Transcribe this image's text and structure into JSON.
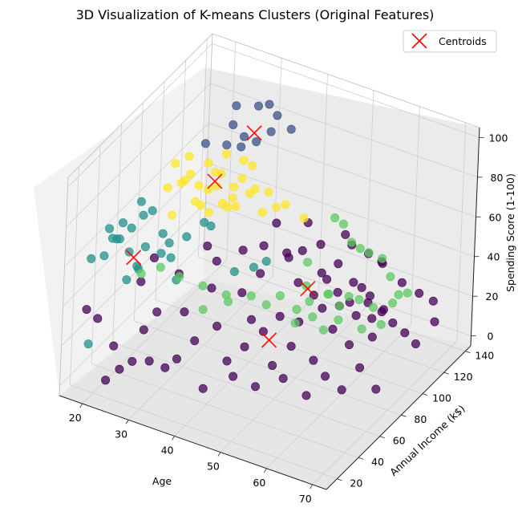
{
  "chart_data": {
    "type": "scatter",
    "title": "3D Visualization of K-means Clusters (Original Features)",
    "xlabel": "Age",
    "ylabel": "Annual Income (k$)",
    "zlabel": "Spending Score (1-100)",
    "xlim": [
      15,
      73
    ],
    "ylim": [
      10,
      145
    ],
    "zlim": [
      -5,
      105
    ],
    "xticks": [
      "20",
      "30",
      "40",
      "50",
      "60",
      "70"
    ],
    "yticks": [
      "20",
      "40",
      "60",
      "80",
      "100",
      "120",
      "140"
    ],
    "zticks": [
      "0",
      "20",
      "40",
      "60",
      "80",
      "100"
    ],
    "grid": true,
    "legend": {
      "position": "top-right",
      "entries": [
        "Centroids"
      ]
    },
    "colors": {
      "cluster0": "#440154",
      "cluster1": "#3b528b",
      "cluster2": "#21918c",
      "cluster3": "#5ec962",
      "cluster4": "#fde725",
      "centroid": "#ff0000"
    },
    "series": [
      {
        "cluster": 0,
        "points": [
          [
            19,
            15,
            39
          ],
          [
            21,
            17,
            35
          ],
          [
            23,
            18,
            5
          ],
          [
            24,
            20,
            22
          ],
          [
            25,
            22,
            10
          ],
          [
            27,
            25,
            14
          ],
          [
            29,
            26,
            31
          ],
          [
            30,
            28,
            15
          ],
          [
            31,
            29,
            40
          ],
          [
            33,
            30,
            13
          ],
          [
            35,
            32,
            18
          ],
          [
            36,
            33,
            42
          ],
          [
            38,
            35,
            28
          ],
          [
            40,
            36,
            5
          ],
          [
            42,
            38,
            37
          ],
          [
            44,
            40,
            20
          ],
          [
            45,
            42,
            12
          ],
          [
            47,
            43,
            28
          ],
          [
            48,
            44,
            42
          ],
          [
            49,
            46,
            8
          ],
          [
            50,
            47,
            36
          ],
          [
            52,
            48,
            20
          ],
          [
            53,
            49,
            45
          ],
          [
            54,
            50,
            14
          ],
          [
            55,
            52,
            30
          ],
          [
            56,
            54,
            42
          ],
          [
            58,
            55,
            6
          ],
          [
            59,
            56,
            24
          ],
          [
            60,
            58,
            50
          ],
          [
            61,
            59,
            16
          ],
          [
            62,
            60,
            40
          ],
          [
            63,
            61,
            52
          ],
          [
            64,
            62,
            10
          ],
          [
            65,
            63,
            33
          ],
          [
            66,
            64,
            48
          ],
          [
            67,
            65,
            22
          ],
          [
            68,
            66,
            55
          ],
          [
            69,
            67,
            38
          ],
          [
            70,
            68,
            12
          ],
          [
            46,
            60,
            55
          ],
          [
            44,
            52,
            48
          ],
          [
            41,
            65,
            60
          ],
          [
            37,
            58,
            55
          ],
          [
            34,
            62,
            58
          ],
          [
            52,
            70,
            50
          ],
          [
            55,
            72,
            45
          ],
          [
            57,
            75,
            53
          ],
          [
            59,
            77,
            47
          ],
          [
            61,
            80,
            42
          ],
          [
            63,
            82,
            50
          ],
          [
            65,
            84,
            35
          ],
          [
            67,
            86,
            40
          ],
          [
            53,
            88,
            46
          ],
          [
            56,
            90,
            52
          ],
          [
            59,
            92,
            44
          ],
          [
            62,
            95,
            38
          ],
          [
            64,
            98,
            30
          ],
          [
            66,
            100,
            25
          ],
          [
            68,
            103,
            20
          ],
          [
            70,
            105,
            15
          ],
          [
            39,
            45,
            50
          ],
          [
            33,
            40,
            55
          ],
          [
            28,
            38,
            60
          ],
          [
            26,
            35,
            48
          ],
          [
            48,
            78,
            55
          ],
          [
            50,
            82,
            58
          ],
          [
            46,
            85,
            52
          ],
          [
            43,
            76,
            58
          ],
          [
            51,
            95,
            55
          ],
          [
            58,
            110,
            48
          ],
          [
            60,
            115,
            42
          ],
          [
            54,
            105,
            57
          ],
          [
            47,
            100,
            60
          ],
          [
            42,
            92,
            60
          ],
          [
            67,
            120,
            30
          ],
          [
            69,
            125,
            25
          ],
          [
            65,
            112,
            38
          ],
          [
            71,
            118,
            20
          ],
          [
            62,
            105,
            50
          ],
          [
            57,
            98,
            58
          ]
        ]
      },
      {
        "cluster": 1,
        "points": [
          [
            27,
            88,
            90
          ],
          [
            30,
            95,
            88
          ],
          [
            32,
            100,
            86
          ],
          [
            29,
            105,
            92
          ],
          [
            33,
            110,
            84
          ],
          [
            35,
            115,
            88
          ],
          [
            31,
            120,
            95
          ],
          [
            34,
            125,
            90
          ],
          [
            36,
            130,
            82
          ],
          [
            30,
            135,
            87
          ],
          [
            28,
            112,
            97
          ],
          [
            33,
            98,
            93
          ]
        ]
      },
      {
        "cluster": 2,
        "points": [
          [
            20,
            40,
            62
          ],
          [
            21,
            38,
            72
          ],
          [
            22,
            42,
            68
          ],
          [
            23,
            36,
            60
          ],
          [
            24,
            44,
            75
          ],
          [
            25,
            35,
            55
          ],
          [
            26,
            38,
            64
          ],
          [
            19,
            30,
            58
          ],
          [
            20,
            33,
            66
          ],
          [
            22,
            28,
            70
          ],
          [
            23,
            46,
            80
          ],
          [
            25,
            48,
            76
          ],
          [
            27,
            50,
            65
          ],
          [
            28,
            52,
            60
          ],
          [
            24,
            30,
            50
          ],
          [
            26,
            32,
            56
          ],
          [
            29,
            40,
            62
          ],
          [
            30,
            45,
            58
          ],
          [
            21,
            25,
            76
          ],
          [
            18,
            22,
            60
          ],
          [
            32,
            42,
            50
          ],
          [
            31,
            55,
            64
          ],
          [
            34,
            58,
            72
          ],
          [
            35,
            60,
            70
          ],
          [
            19,
            18,
            20
          ],
          [
            40,
            62,
            50
          ],
          [
            45,
            70,
            55
          ],
          [
            43,
            67,
            52
          ]
        ]
      },
      {
        "cluster": 3,
        "points": [
          [
            38,
            42,
            40
          ],
          [
            42,
            48,
            44
          ],
          [
            46,
            52,
            48
          ],
          [
            48,
            58,
            42
          ],
          [
            50,
            62,
            46
          ],
          [
            53,
            65,
            40
          ],
          [
            55,
            68,
            44
          ],
          [
            58,
            72,
            48
          ],
          [
            60,
            75,
            42
          ],
          [
            63,
            80,
            45
          ],
          [
            65,
            85,
            40
          ],
          [
            68,
            90,
            42
          ],
          [
            70,
            95,
            46
          ],
          [
            67,
            100,
            40
          ],
          [
            64,
            105,
            44
          ],
          [
            61,
            110,
            48
          ],
          [
            57,
            115,
            45
          ],
          [
            54,
            120,
            42
          ],
          [
            51,
            125,
            40
          ],
          [
            48,
            130,
            44
          ],
          [
            45,
            135,
            42
          ],
          [
            40,
            55,
            42
          ],
          [
            36,
            50,
            46
          ],
          [
            32,
            45,
            50
          ],
          [
            29,
            40,
            55
          ],
          [
            26,
            35,
            52
          ],
          [
            60,
            60,
            38
          ],
          [
            62,
            65,
            42
          ],
          [
            55,
            55,
            40
          ],
          [
            58,
            58,
            44
          ],
          [
            66,
            70,
            38
          ],
          [
            69,
            75,
            40
          ],
          [
            52,
            78,
            44
          ],
          [
            56,
            82,
            41
          ],
          [
            59,
            88,
            39
          ],
          [
            49,
            92,
            46
          ]
        ]
      },
      {
        "cluster": 4,
        "points": [
          [
            25,
            62,
            80
          ],
          [
            27,
            66,
            82
          ],
          [
            28,
            70,
            85
          ],
          [
            29,
            74,
            78
          ],
          [
            30,
            78,
            88
          ],
          [
            31,
            82,
            75
          ],
          [
            32,
            86,
            90
          ],
          [
            33,
            90,
            72
          ],
          [
            34,
            94,
            84
          ],
          [
            35,
            98,
            80
          ],
          [
            26,
            64,
            92
          ],
          [
            28,
            68,
            95
          ],
          [
            30,
            72,
            70
          ],
          [
            32,
            76,
            86
          ],
          [
            34,
            80,
            68
          ],
          [
            36,
            84,
            82
          ],
          [
            38,
            88,
            76
          ],
          [
            40,
            92,
            74
          ],
          [
            27,
            58,
            70
          ],
          [
            29,
            60,
            88
          ],
          [
            31,
            62,
            78
          ],
          [
            33,
            65,
            84
          ],
          [
            35,
            68,
            92
          ],
          [
            37,
            71,
            80
          ],
          [
            30,
            80,
            62
          ],
          [
            32,
            84,
            66
          ],
          [
            34,
            88,
            64
          ],
          [
            36,
            92,
            70
          ],
          [
            38,
            96,
            60
          ],
          [
            40,
            100,
            62
          ],
          [
            45,
            105,
            58
          ],
          [
            42,
            100,
            65
          ]
        ]
      }
    ],
    "centroids": [
      [
        48,
        62,
        22
      ],
      [
        32.5,
        110,
        88
      ],
      [
        24,
        36,
        58
      ],
      [
        53,
        75,
        45
      ],
      [
        31.5,
        78,
        80
      ]
    ]
  }
}
